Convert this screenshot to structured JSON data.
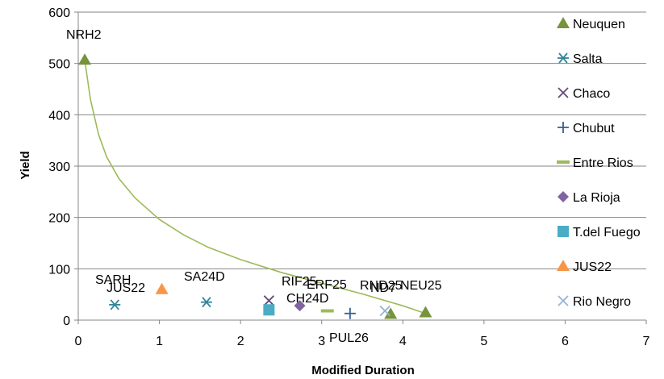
{
  "chart_data": {
    "type": "scatter",
    "title": "",
    "xlabel": "Modified Duration",
    "ylabel": "Yield",
    "xlim": [
      0,
      7
    ],
    "ylim": [
      0,
      600
    ],
    "xticks": [
      0,
      1,
      2,
      3,
      4,
      5,
      6,
      7
    ],
    "yticks": [
      0,
      100,
      200,
      300,
      400,
      500,
      600
    ],
    "grid": "horizontal",
    "legend_position": "right",
    "series": [
      {
        "name": "Neuquen",
        "marker": "triangle",
        "color": "#77933C",
        "points": [
          {
            "x": 0.08,
            "y": 507,
            "label": "NRH2"
          },
          {
            "x": 3.85,
            "y": 12,
            "label": "ND7"
          },
          {
            "x": 4.28,
            "y": 15,
            "label": "NEU25"
          }
        ]
      },
      {
        "name": "Salta",
        "marker": "asterisk",
        "color": "#31849B",
        "points": [
          {
            "x": 0.45,
            "y": 30,
            "label": "SARH"
          },
          {
            "x": 1.58,
            "y": 35,
            "label": "SA24D"
          }
        ]
      },
      {
        "name": "Chaco",
        "marker": "x",
        "color": "#604A7B",
        "points": [
          {
            "x": 2.35,
            "y": 38,
            "label": "CH24D"
          }
        ]
      },
      {
        "name": "Chubut",
        "marker": "plus",
        "color": "#376092",
        "points": [
          {
            "x": 3.35,
            "y": 13,
            "label": "PUL26"
          }
        ]
      },
      {
        "name": "Entre Rios",
        "marker": "dash",
        "color": "#9BBB59",
        "points": [
          {
            "x": 3.07,
            "y": 18,
            "label": "ERF25"
          }
        ]
      },
      {
        "name": "La Rioja",
        "marker": "diamond",
        "color": "#8064A2",
        "points": [
          {
            "x": 2.73,
            "y": 28,
            "label": "RIF25"
          }
        ]
      },
      {
        "name": "T.del Fuego",
        "marker": "square",
        "color": "#4BACC6",
        "points": [
          {
            "x": 2.35,
            "y": 20,
            "label": ""
          }
        ]
      },
      {
        "name": "JUS22",
        "marker": "triangle",
        "color": "#F79646",
        "points": [
          {
            "x": 1.03,
            "y": 60,
            "label": "JUS22"
          }
        ]
      },
      {
        "name": "Rio Negro",
        "marker": "x",
        "color": "#95B3D7",
        "points": [
          {
            "x": 3.78,
            "y": 18,
            "label": "RND25"
          }
        ]
      }
    ],
    "trendline": {
      "type": "power",
      "color": "#9BBB59",
      "points": [
        [
          0.08,
          507
        ],
        [
          0.15,
          430
        ],
        [
          0.25,
          362
        ],
        [
          0.35,
          318
        ],
        [
          0.5,
          276
        ],
        [
          0.7,
          238
        ],
        [
          1.0,
          196
        ],
        [
          1.3,
          166
        ],
        [
          1.6,
          142
        ],
        [
          2.0,
          118
        ],
        [
          2.5,
          93
        ],
        [
          3.0,
          72
        ],
        [
          3.5,
          51
        ],
        [
          4.0,
          28
        ],
        [
          4.28,
          13
        ]
      ]
    },
    "point_labels": [
      {
        "text": "NRH2"
      },
      {
        "text": "SARH"
      },
      {
        "text": "JUS22"
      },
      {
        "text": "SA24D"
      },
      {
        "text": "RIF25"
      },
      {
        "text": "CH24D"
      },
      {
        "text": "ERF25"
      },
      {
        "text": "PUL26"
      },
      {
        "text": "RND25"
      },
      {
        "text": "ND7"
      },
      {
        "text": "NEU25"
      }
    ]
  }
}
